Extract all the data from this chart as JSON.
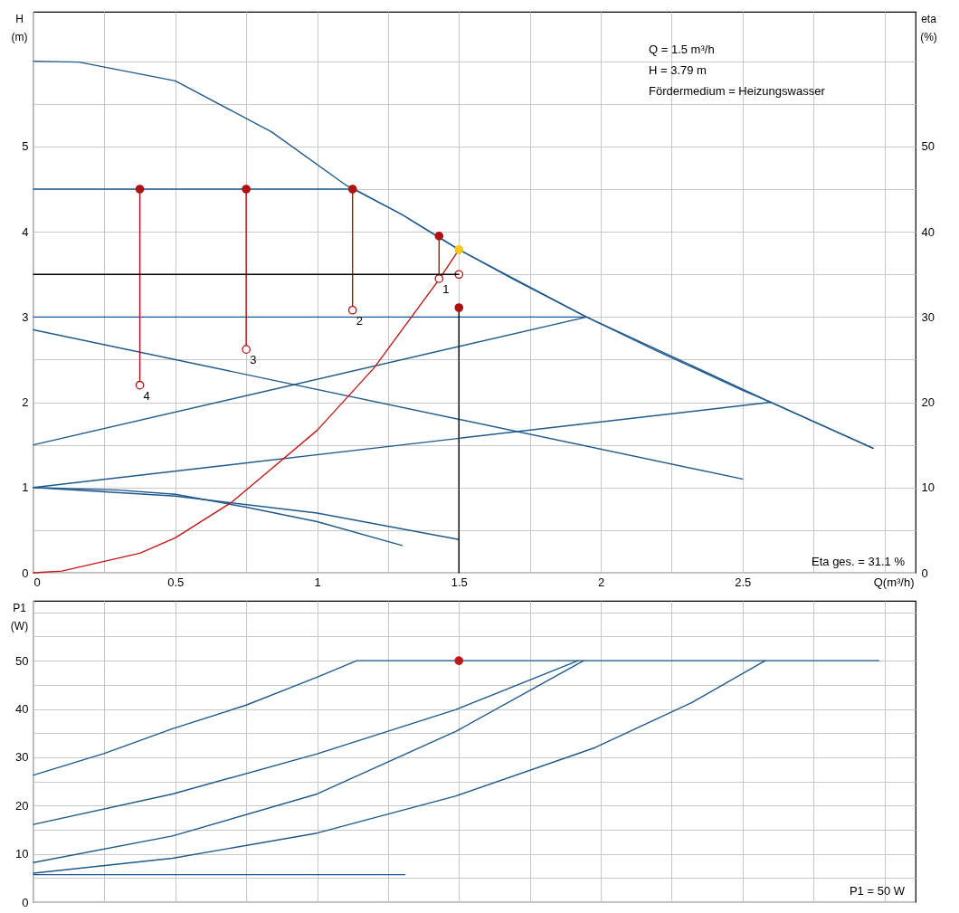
{
  "chart_data": [
    {
      "type": "line",
      "xlabel": "Q(m³/h)",
      "ylabel": "H (m)",
      "y2label": "eta (%)",
      "xlim": [
        0,
        3.11
      ],
      "ylim": [
        0,
        6.58
      ],
      "y2lim": [
        0,
        65.8
      ],
      "xticks": [
        0,
        {
          "value": 0.25,
          "label": null
        },
        0.5,
        {
          "value": 0.75,
          "label": null
        },
        1,
        {
          "value": 1.25,
          "label": null
        },
        1.5,
        {
          "value": 1.75,
          "label": null
        },
        2,
        {
          "value": 2.25,
          "label": null
        },
        2.5,
        {
          "value": 2.75,
          "label": null
        },
        {
          "value": 3,
          "label": null
        }
      ],
      "yticks": [
        0,
        {
          "value": 0.5,
          "label": null
        },
        1,
        {
          "value": 1.5,
          "label": null
        },
        2,
        {
          "value": 2.5,
          "label": null
        },
        3,
        {
          "value": 3.5,
          "label": null
        },
        4,
        {
          "value": 4.5,
          "label": null
        },
        5,
        {
          "value": 5.5,
          "label": null
        },
        {
          "value": 6,
          "label": null
        }
      ],
      "y2ticks": [
        0,
        10,
        20,
        30,
        40,
        50
      ],
      "grid": true,
      "series": [
        {
          "type": "line",
          "color": "#1f5a8e",
          "x": [
            0,
            0.16,
            0.5,
            0.84,
            1.1,
            1.3,
            1.5,
            1.7,
            1.95,
            2.2,
            2.5,
            2.6,
            2.96
          ],
          "values": [
            6.0,
            5.99,
            5.77,
            5.17,
            4.55,
            4.2,
            3.79,
            3.43,
            3.0,
            2.6,
            2.14,
            2.0,
            1.46
          ]
        },
        {
          "type": "line",
          "color": "#1f5a8e",
          "x": [
            0,
            1.13,
            1.3,
            1.5,
            1.95,
            2.6,
            2.96
          ],
          "values": [
            4.5,
            4.5,
            4.2,
            3.79,
            3.0,
            2.0,
            1.46
          ]
        },
        {
          "type": "line",
          "color": "#1f5a8e",
          "x": [
            0,
            1.95
          ],
          "values": [
            3.0,
            3.0
          ]
        },
        {
          "type": "line",
          "color": "#1f5a8e",
          "x": [
            0,
            1.95
          ],
          "values": [
            1.5,
            3.0
          ]
        },
        {
          "type": "line",
          "color": "#1f5a8e",
          "x": [
            0,
            2.6
          ],
          "values": [
            1.0,
            2.0
          ]
        },
        {
          "type": "line",
          "color": "#1f5a8e",
          "x": [
            0,
            2.5
          ],
          "values": [
            2.85,
            1.1
          ]
        },
        {
          "type": "line",
          "color": "#1f5a8e",
          "x": [
            0,
            0.3,
            0.5,
            0.75,
            1.0,
            1.3
          ],
          "values": [
            1.0,
            0.97,
            0.92,
            0.77,
            0.6,
            0.32
          ]
        },
        {
          "type": "line",
          "color": "#1f5a8e",
          "x": [
            0,
            0.5,
            1.0,
            1.5
          ],
          "values": [
            1.0,
            0.9,
            0.7,
            0.39
          ]
        },
        {
          "type": "line",
          "color": "#c01818",
          "x": [
            0,
            0.1,
            0.375,
            0.5,
            0.7,
            1.0,
            1.2,
            1.43,
            1.5
          ],
          "values": [
            0,
            0.02,
            0.23,
            0.41,
            0.83,
            1.67,
            2.4,
            3.44,
            3.79
          ]
        },
        {
          "type": "line",
          "color": "#000000",
          "axis": "y2",
          "x": [
            0,
            1.5
          ],
          "values": [
            35,
            35
          ]
        },
        {
          "type": "line",
          "color": "#000000",
          "axis": "y2",
          "x": [
            1.5,
            1.5
          ],
          "values": [
            0,
            31.1
          ]
        },
        {
          "type": "line",
          "color": "#b01010",
          "x": [
            0.375,
            0.375
          ],
          "values": [
            4.5,
            2.2
          ]
        },
        {
          "type": "line",
          "color": "#b01010",
          "x": [
            0.75,
            0.75
          ],
          "values": [
            4.5,
            2.62
          ]
        },
        {
          "type": "line",
          "color": "#b01010",
          "x": [
            1.125,
            1.125
          ],
          "values": [
            4.5,
            3.08
          ]
        },
        {
          "type": "line",
          "color": "#b01010",
          "x": [
            1.43,
            1.43
          ],
          "values": [
            3.95,
            3.45
          ]
        },
        {
          "type": "scatter",
          "color": "#b01010",
          "x": [
            0.375,
            0.75,
            1.125,
            1.43
          ],
          "values": [
            4.5,
            4.5,
            4.5,
            3.95
          ]
        },
        {
          "type": "scatter",
          "color": "#b01010",
          "marker": "circle",
          "x": [
            0.375,
            0.75,
            1.125,
            1.43,
            1.5
          ],
          "values": [
            2.2,
            2.62,
            3.08,
            3.45,
            3.5
          ]
        },
        {
          "type": "scatter",
          "color": "#b01010",
          "axis": "y2",
          "x": [
            1.5
          ],
          "values": [
            31.1
          ]
        },
        {
          "type": "scatter",
          "color": "#f5c518",
          "x": [
            1.5
          ],
          "values": [
            3.79
          ]
        }
      ],
      "annotations": [
        {
          "text": "4",
          "x": 0.375,
          "y": 2.2
        },
        {
          "text": "3",
          "x": 0.75,
          "y": 2.62
        },
        {
          "text": "2",
          "x": 1.125,
          "y": 3.08
        },
        {
          "text": "1",
          "x": 1.43,
          "y": 3.45
        },
        "Q = 1.5 m³/h",
        "H = 3.79 m",
        "Fördermedium = Heizungswasser",
        "Eta ges. = 31.1 %"
      ]
    },
    {
      "type": "line",
      "ylabel": "P1 (W)",
      "tick_labels": "y",
      "xlim": [
        0,
        3.11
      ],
      "ylim": [
        0,
        62.4
      ],
      "xticks": [
        0,
        {
          "value": 0.25,
          "label": null
        },
        0.5,
        {
          "value": 0.75,
          "label": null
        },
        1,
        {
          "value": 1.25,
          "label": null
        },
        1.5,
        {
          "value": 1.75,
          "label": null
        },
        2,
        {
          "value": 2.25,
          "label": null
        },
        2.5,
        {
          "value": 2.75,
          "label": null
        },
        {
          "value": 3,
          "label": null
        }
      ],
      "yticks": [
        0,
        {
          "value": 5,
          "label": null
        },
        10,
        {
          "value": 15,
          "label": null
        },
        20,
        {
          "value": 25,
          "label": null
        },
        30,
        {
          "value": 35,
          "label": null
        },
        40,
        {
          "value": 45,
          "label": null
        },
        50,
        {
          "value": 55,
          "label": null
        },
        {
          "value": 60,
          "label": null
        }
      ],
      "grid": true,
      "series": [
        {
          "type": "line",
          "color": "#1f5a8e",
          "x": [
            0,
            0.25,
            0.49,
            0.75,
            1.0,
            1.14,
            2.98
          ],
          "values": [
            26.3,
            30.8,
            35.9,
            40.8,
            46.6,
            50,
            50
          ]
        },
        {
          "type": "line",
          "color": "#1f5a8e",
          "x": [
            0,
            0.49,
            1.0,
            1.49,
            1.92
          ],
          "values": [
            16.1,
            22.4,
            30.7,
            39.9,
            50
          ]
        },
        {
          "type": "line",
          "color": "#1f5a8e",
          "x": [
            0,
            0.49,
            1.0,
            1.49,
            1.94
          ],
          "values": [
            8.2,
            13.7,
            22.4,
            35.4,
            50
          ]
        },
        {
          "type": "line",
          "color": "#1f5a8e",
          "x": [
            0,
            0.49,
            1.0,
            1.49,
            1.98,
            2.32,
            2.58
          ],
          "values": [
            6.0,
            9.1,
            14.3,
            22.0,
            32,
            41.3,
            50
          ]
        },
        {
          "type": "line",
          "color": "#1f5a8e",
          "x": [
            0,
            1.31
          ],
          "values": [
            5.7,
            5.7
          ]
        },
        {
          "type": "scatter",
          "color": "#c01818",
          "x": [
            1.5
          ],
          "values": [
            50
          ]
        }
      ],
      "annotations": [
        "P1 = 50 W"
      ]
    }
  ]
}
